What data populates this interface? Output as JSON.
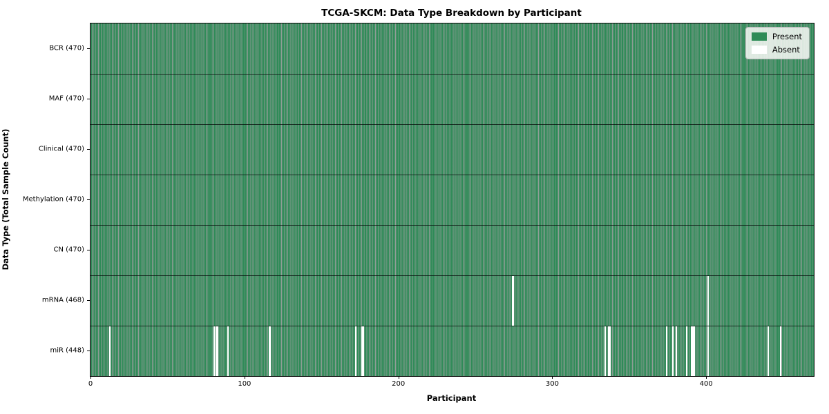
{
  "chart_data": {
    "type": "heatmap",
    "title": "TCGA-SKCM: Data Type Breakdown by Participant",
    "xlabel": "Participant",
    "ylabel": "Data Type (Total Sample Count)",
    "xlim": [
      0,
      470
    ],
    "x_ticks": [
      0,
      100,
      200,
      300,
      400
    ],
    "grid": false,
    "legend_position": "upper right",
    "total_participants": 470,
    "colors": {
      "present": "#2e8b57",
      "absent": "#ffffff",
      "bar_edge": "rgba(10,40,25,0.45)",
      "row_divider": "rgba(0,0,0,0.7)"
    },
    "legend": [
      {
        "label": "Present",
        "swatch": "#2e8b57"
      },
      {
        "label": "Absent",
        "swatch": "#ffffff"
      }
    ],
    "rows": [
      {
        "name": "BCR",
        "label": "BCR (470)",
        "present_count": 470,
        "absent_participants": []
      },
      {
        "name": "MAF",
        "label": "MAF (470)",
        "present_count": 470,
        "absent_participants": []
      },
      {
        "name": "Clinical",
        "label": "Clinical (470)",
        "present_count": 470,
        "absent_participants": []
      },
      {
        "name": "Methylation",
        "label": "Methylation (470)",
        "present_count": 470,
        "absent_participants": []
      },
      {
        "name": "CN",
        "label": "CN (470)",
        "present_count": 470,
        "absent_participants": []
      },
      {
        "name": "mRNA",
        "label": "mRNA (468)",
        "present_count": 468,
        "absent_participants": [
          274,
          401
        ]
      },
      {
        "name": "miR",
        "label": "miR (448)",
        "present_count": 448,
        "absent_participants": [
          12,
          80,
          81,
          82,
          89,
          116,
          172,
          176,
          177,
          334,
          336,
          337,
          374,
          378,
          380,
          387,
          390,
          391,
          392,
          401,
          440,
          448
        ]
      }
    ]
  }
}
